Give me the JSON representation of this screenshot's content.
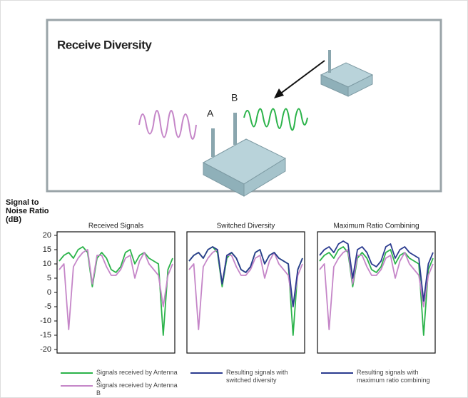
{
  "diagram": {
    "title": "Receive Diversity",
    "antenna_labels": [
      "A",
      "B"
    ]
  },
  "chart_data": [
    {
      "type": "line",
      "title": "Received Signals",
      "ylabel": "Signal to Noise Ratio (dB)",
      "x": [
        0,
        1,
        2,
        3,
        4,
        5,
        6,
        7,
        8,
        9,
        10,
        11,
        12,
        13,
        14,
        15,
        16,
        17,
        18,
        19,
        20,
        21,
        22,
        23,
        24
      ],
      "xlim": [
        0,
        24
      ],
      "ylim": [
        -20,
        20
      ],
      "yticks": [
        20,
        15,
        10,
        5,
        0,
        -5,
        -10,
        -15,
        -20
      ],
      "series": [
        {
          "name": "Signals received by Antenna A",
          "color": "#2bb34a",
          "values": [
            11,
            13,
            14,
            12,
            15,
            16,
            14,
            2,
            12,
            14,
            12,
            8,
            7,
            9,
            14,
            15,
            10,
            13,
            14,
            12,
            11,
            10,
            -15,
            8,
            12
          ]
        },
        {
          "name": "Signals received by Antenna B",
          "color": "#c586c8",
          "values": [
            8,
            10,
            -13,
            9,
            12,
            14,
            15,
            3,
            13,
            13,
            9,
            6,
            6,
            8,
            12,
            13,
            5,
            11,
            14,
            10,
            8,
            6,
            -5,
            6,
            10
          ]
        }
      ]
    },
    {
      "type": "line",
      "title": "Switched Diversity",
      "x": [
        0,
        1,
        2,
        3,
        4,
        5,
        6,
        7,
        8,
        9,
        10,
        11,
        12,
        13,
        14,
        15,
        16,
        17,
        18,
        19,
        20,
        21,
        22,
        23,
        24
      ],
      "xlim": [
        0,
        24
      ],
      "ylim": [
        -20,
        20
      ],
      "series": [
        {
          "color": "#2bb34a",
          "values": [
            11,
            13,
            14,
            12,
            15,
            16,
            14,
            2,
            12,
            14,
            12,
            8,
            7,
            9,
            14,
            15,
            10,
            13,
            14,
            12,
            11,
            10,
            -15,
            8,
            12
          ]
        },
        {
          "color": "#c586c8",
          "values": [
            8,
            10,
            -13,
            9,
            12,
            14,
            15,
            3,
            13,
            13,
            9,
            6,
            6,
            8,
            12,
            13,
            5,
            11,
            14,
            10,
            8,
            6,
            -5,
            6,
            10
          ]
        },
        {
          "name": "Resulting signals with switched diversity",
          "color": "#2b3b8f",
          "values": [
            11,
            13,
            14,
            12,
            15,
            16,
            15,
            3,
            13,
            14,
            12,
            8,
            7,
            9,
            14,
            15,
            10,
            13,
            14,
            12,
            11,
            10,
            -5,
            8,
            12
          ]
        }
      ]
    },
    {
      "type": "line",
      "title": "Maximum Ratio Combining",
      "x": [
        0,
        1,
        2,
        3,
        4,
        5,
        6,
        7,
        8,
        9,
        10,
        11,
        12,
        13,
        14,
        15,
        16,
        17,
        18,
        19,
        20,
        21,
        22,
        23,
        24
      ],
      "xlim": [
        0,
        24
      ],
      "ylim": [
        -20,
        20
      ],
      "series": [
        {
          "color": "#2bb34a",
          "values": [
            11,
            13,
            14,
            12,
            15,
            16,
            14,
            2,
            12,
            14,
            12,
            8,
            7,
            9,
            14,
            15,
            10,
            13,
            14,
            12,
            11,
            10,
            -15,
            8,
            12
          ]
        },
        {
          "color": "#c586c8",
          "values": [
            8,
            10,
            -13,
            9,
            12,
            14,
            15,
            3,
            13,
            13,
            9,
            6,
            6,
            8,
            12,
            13,
            5,
            11,
            14,
            10,
            8,
            6,
            -5,
            6,
            10
          ]
        },
        {
          "name": "Resulting signals with maximum ratio combining",
          "color": "#2b3b8f",
          "values": [
            13,
            15,
            16,
            14,
            17,
            18,
            17,
            5,
            15,
            16,
            14,
            10,
            9,
            11,
            16,
            17,
            12,
            15,
            16,
            14,
            13,
            12,
            -3,
            10,
            14
          ]
        }
      ]
    }
  ]
}
